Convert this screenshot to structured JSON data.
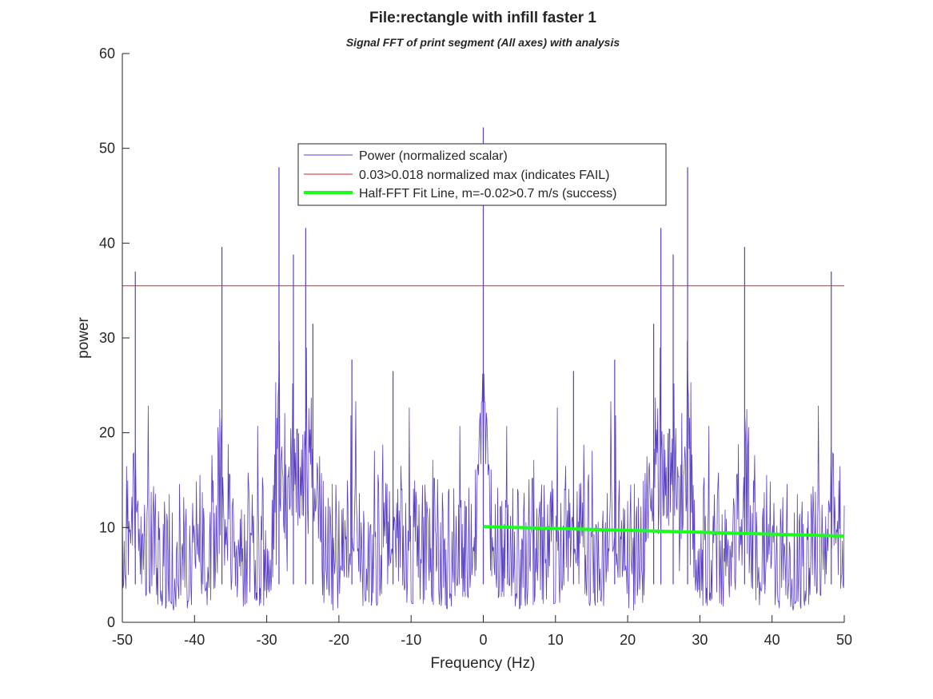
{
  "chart_data": {
    "type": "line",
    "title": "File:rectangle with infill faster 1",
    "subtitle": "Signal FFT of print segment (All axes) with analysis",
    "xlabel": "Frequency (Hz)",
    "ylabel": "power",
    "xlim": [
      -50,
      50
    ],
    "ylim": [
      0,
      60
    ],
    "xticks": [
      -50,
      -40,
      -30,
      -20,
      -10,
      0,
      10,
      20,
      30,
      40,
      50
    ],
    "yticks": [
      0,
      10,
      20,
      30,
      40,
      50,
      60
    ],
    "grid": false,
    "legend_placement": "top-center",
    "noise_seed": 7,
    "series": [
      {
        "name": "Power (normalized scalar)",
        "color": "#5b3fc7",
        "style": "noisy-spectrum, symmetric about 0 Hz",
        "baseline_level": 8,
        "peaks": [
          {
            "x": -48.2,
            "y": 37.0
          },
          {
            "x": -36.2,
            "y": 39.6
          },
          {
            "x": -28.3,
            "y": 48.0
          },
          {
            "x": -26.3,
            "y": 38.8
          },
          {
            "x": -24.6,
            "y": 41.6
          },
          {
            "x": -23.6,
            "y": 31.5
          },
          {
            "x": -18.2,
            "y": 27.7
          },
          {
            "x": -12.5,
            "y": 26.5
          },
          {
            "x": 0,
            "y": 52.2
          },
          {
            "x": 12.5,
            "y": 26.5
          },
          {
            "x": 18.2,
            "y": 27.7
          },
          {
            "x": 23.6,
            "y": 31.5
          },
          {
            "x": 24.6,
            "y": 41.6
          },
          {
            "x": 26.3,
            "y": 38.8
          },
          {
            "x": 28.3,
            "y": 48.0
          },
          {
            "x": 36.2,
            "y": 39.6
          },
          {
            "x": 48.2,
            "y": 37.0
          }
        ]
      },
      {
        "name": "0.03>0.018 normalized max (indicates FAIL)",
        "color": "#d62728",
        "type": "hline",
        "y": 35.5
      },
      {
        "name": "Half-FFT Fit Line, m=-0.02>0.7 m/s (success)",
        "color": "#1aff1a",
        "type": "fit-line",
        "x": [
          0,
          50
        ],
        "y": [
          10.1,
          9.1
        ]
      }
    ]
  }
}
